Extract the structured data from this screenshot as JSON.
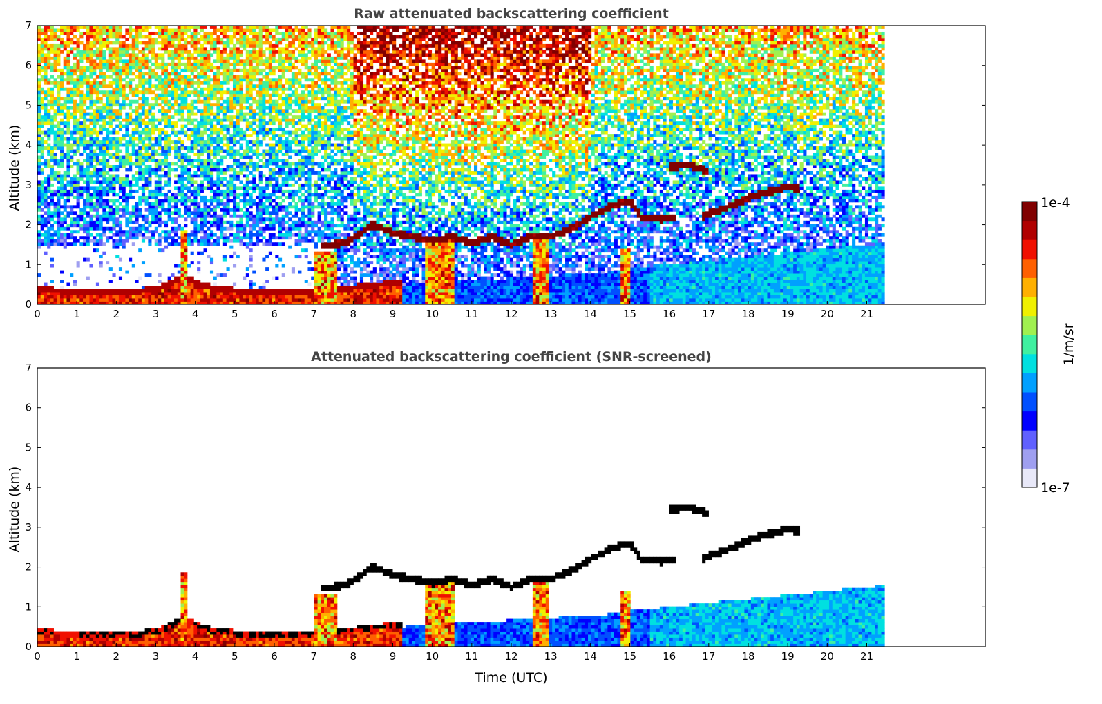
{
  "chart_data": [
    {
      "type": "heatmap",
      "title": "Raw attenuated backscattering coefficient",
      "xlabel": "",
      "ylabel": "Altitude (km)",
      "xlim": [
        0,
        24
      ],
      "ylim": [
        0,
        7
      ],
      "x_ticks": [
        "0",
        "1",
        "2",
        "3",
        "4",
        "5",
        "6",
        "7",
        "8",
        "9",
        "10",
        "11",
        "12",
        "13",
        "14",
        "15",
        "16",
        "17",
        "18",
        "19",
        "20",
        "21"
      ],
      "y_ticks": [
        "0",
        "1",
        "2",
        "3",
        "4",
        "5",
        "6",
        "7"
      ],
      "data_end_time": 21.45,
      "screened": false,
      "features": {
        "boundary_layer_top": [
          [
            0,
            0.3
          ],
          [
            1,
            0.25
          ],
          [
            2,
            0.22
          ],
          [
            3,
            0.3
          ],
          [
            3.7,
            0.6
          ],
          [
            4.5,
            0.3
          ],
          [
            5.5,
            0.25
          ],
          [
            6.5,
            0.25
          ],
          [
            7.5,
            0.3
          ],
          [
            8.5,
            0.4
          ],
          [
            9.2,
            0.5
          ]
        ],
        "cloud_layer": [
          [
            7.2,
            1.45
          ],
          [
            7.8,
            1.55
          ],
          [
            8.5,
            2.0
          ],
          [
            9.0,
            1.8
          ],
          [
            9.5,
            1.7
          ],
          [
            10.0,
            1.6
          ],
          [
            10.5,
            1.7
          ],
          [
            11.0,
            1.55
          ],
          [
            11.5,
            1.7
          ],
          [
            12.0,
            1.5
          ],
          [
            12.5,
            1.7
          ],
          [
            13.0,
            1.7
          ],
          [
            13.5,
            1.9
          ],
          [
            14.0,
            2.2
          ],
          [
            14.5,
            2.45
          ],
          [
            15.0,
            2.6
          ],
          [
            15.3,
            2.2
          ],
          [
            15.8,
            2.15
          ],
          [
            16.2,
            2.2
          ]
        ],
        "upper_cloud": [
          [
            16.0,
            3.45
          ],
          [
            16.5,
            3.5
          ],
          [
            17.0,
            3.35
          ]
        ],
        "rising_cloud": [
          [
            16.8,
            2.2
          ],
          [
            17.5,
            2.45
          ],
          [
            18.2,
            2.75
          ],
          [
            19.0,
            2.95
          ],
          [
            19.3,
            2.9
          ]
        ]
      }
    },
    {
      "type": "heatmap",
      "title": "Attenuated backscattering coefficient (SNR-screened)",
      "xlabel": "Time (UTC)",
      "ylabel": "Altitude (km)",
      "xlim": [
        0,
        24
      ],
      "ylim": [
        0,
        7
      ],
      "x_ticks": [
        "0",
        "1",
        "2",
        "3",
        "4",
        "5",
        "6",
        "7",
        "8",
        "9",
        "10",
        "11",
        "12",
        "13",
        "14",
        "15",
        "16",
        "17",
        "18",
        "19",
        "20",
        "21"
      ],
      "y_ticks": [
        "0",
        "1",
        "2",
        "3",
        "4",
        "5",
        "6",
        "7"
      ],
      "data_end_time": 21.45,
      "screened": true
    }
  ],
  "colorbar": {
    "label": "1/m/sr",
    "max_label": "1e-4",
    "min_label": "1e-7",
    "colormap": "jet",
    "colors": [
      "#e8e8f8",
      "#9f9ff0",
      "#6060ff",
      "#0000ff",
      "#0050ff",
      "#00a0ff",
      "#00e0e0",
      "#40f0a0",
      "#a0f050",
      "#f0f000",
      "#ffb000",
      "#ff6000",
      "#f01000",
      "#b00000",
      "#800000"
    ]
  }
}
